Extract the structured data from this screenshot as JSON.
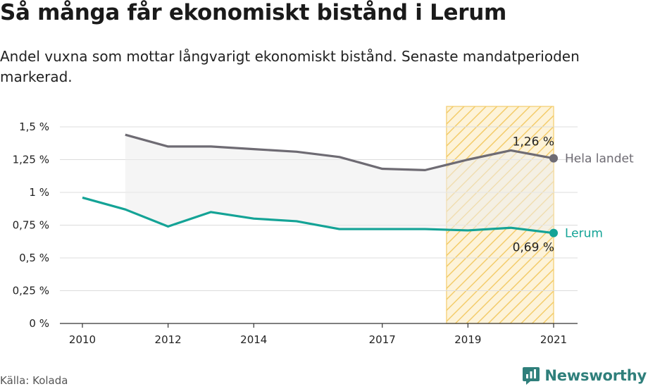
{
  "title": "Så många får ekonomiskt bistånd i Lerum",
  "subtitle": "Andel vuxna som mottar långvarigt ekonomiskt bistånd. Senaste mandatperioden markerad.",
  "source": "Källa: Kolada",
  "brand": "Newsworthy",
  "colors": {
    "hela_landet": "#6e6b73",
    "lerum": "#14a396",
    "highlight": "#f3cc6b",
    "fill": "#ececec"
  },
  "chart_data": {
    "type": "line",
    "x": [
      2010,
      2011,
      2012,
      2013,
      2014,
      2015,
      2016,
      2017,
      2018,
      2019,
      2020,
      2021
    ],
    "xticks": [
      2010,
      2012,
      2014,
      2017,
      2019,
      2021
    ],
    "xtick_labels": [
      "2010",
      "2012",
      "2014",
      "2017",
      "2019",
      "2021"
    ],
    "ylim": [
      0,
      1.5
    ],
    "yticks": [
      0,
      0.25,
      0.5,
      0.75,
      1,
      1.25,
      1.5
    ],
    "ytick_labels": [
      "0 %",
      "0,25 %",
      "0,5 %",
      "0,75 %",
      "1 %",
      "1,25 %",
      "1,5 %"
    ],
    "highlight_range": [
      2018.5,
      2021
    ],
    "series": [
      {
        "name": "Hela landet",
        "values": [
          null,
          1.44,
          1.35,
          1.35,
          1.33,
          1.31,
          1.27,
          1.18,
          1.17,
          1.25,
          1.32,
          1.26
        ],
        "end_label": "1,26 %"
      },
      {
        "name": "Lerum",
        "values": [
          0.96,
          0.87,
          0.74,
          0.85,
          0.8,
          0.78,
          0.72,
          0.72,
          0.72,
          0.71,
          0.73,
          0.69
        ],
        "end_label": "0,69 %"
      }
    ]
  }
}
